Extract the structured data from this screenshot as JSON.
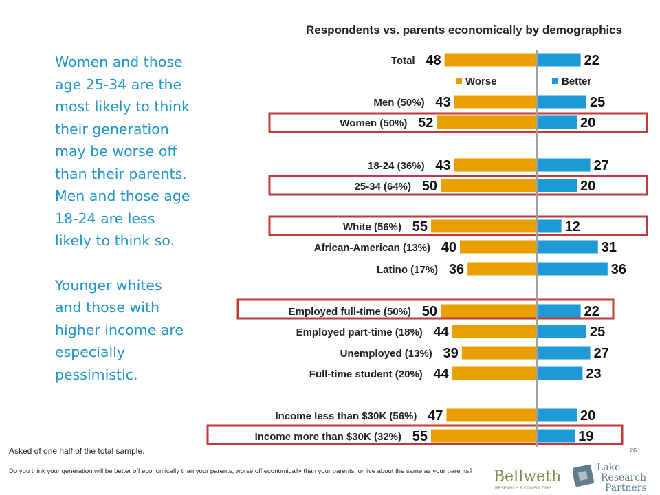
{
  "sidebar_text": {
    "paragraph1": "Women and those age 25-34 are the most likely to think their generation may be worse off than their parents. Men and those age 18-24 are less likely to think so.",
    "paragraph2": "Younger whites and those with higher income are especially pessimistic."
  },
  "footnote": "Asked of one half of the total sample.",
  "question": "Do you think your generation will be better off economically than your parents, worse off economically than your parents, or live about the same as your parents?",
  "page_number": "26",
  "logos": {
    "bellwether": {
      "name": "Bellwether",
      "sub": "RESEARCH & CONSULTING"
    },
    "lake": {
      "line1": "Lake",
      "line2": "Research",
      "line3": "Partners"
    }
  },
  "colors": {
    "worse": "#e8a000",
    "better": "#1e9ad6",
    "highlight": "#c0393b",
    "text_blue": "#2196c9"
  },
  "chart_data": {
    "type": "bar",
    "title": "Respondents vs. parents economically by demographics",
    "legend": [
      "Worse",
      "Better"
    ],
    "categories": [
      "Total",
      "Men (50%)",
      "Women (50%)",
      "18-24 (36%)",
      "25-34 (64%)",
      "White (56%)",
      "African-American (13%)",
      "Latino (17%)",
      "Employed full-time (50%)",
      "Employed part-time (18%)",
      "Unemployed (13%)",
      "Full-time student (20%)",
      "Income less than $30K (56%)",
      "Income more than $30K (32%)"
    ],
    "series": [
      {
        "name": "Worse",
        "values": [
          48,
          43,
          52,
          43,
          50,
          55,
          40,
          36,
          50,
          44,
          39,
          44,
          47,
          55
        ]
      },
      {
        "name": "Better",
        "values": [
          22,
          25,
          20,
          27,
          20,
          12,
          31,
          36,
          22,
          25,
          27,
          23,
          20,
          19
        ]
      }
    ],
    "highlighted": [
      "Women (50%)",
      "25-34 (64%)",
      "White (56%)",
      "Employed full-time (50%)",
      "Income more than $30K (32%)"
    ]
  }
}
